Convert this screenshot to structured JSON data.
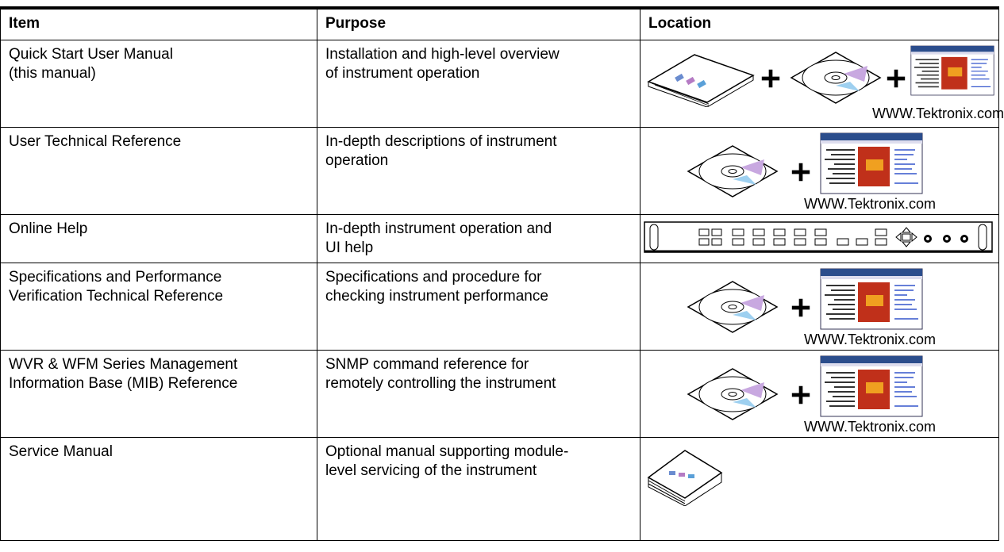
{
  "table": {
    "header": [
      "Item",
      "Purpose",
      "Location"
    ],
    "rows": [
      {
        "item": [
          "Quick Start User Manual",
          "(this manual)"
        ],
        "purpose": [
          "Installation and high-level overview",
          "of instrument operation"
        ],
        "caption": "WWW.Tektronix.com"
      },
      {
        "item": [
          "User Technical Reference"
        ],
        "purpose": [
          "In-depth descriptions of instrument",
          "operation"
        ],
        "caption": "WWW.Tektronix.com"
      },
      {
        "item": [
          "Online Help"
        ],
        "purpose": [
          "In-depth instrument operation and",
          "UI help"
        ]
      },
      {
        "item": [
          "Specifications and Performance",
          "Verification Technical Reference"
        ],
        "purpose": [
          "Specifications and procedure for",
          "checking instrument performance"
        ],
        "caption": "WWW.Tektronix.com"
      },
      {
        "item": [
          "WVR & WFM Series Management",
          "Information Base (MIB) Reference"
        ],
        "purpose": [
          "SNMP command reference for",
          "remotely controlling the instrument"
        ],
        "caption": "WWW.Tektronix.com"
      },
      {
        "item": [
          "Service Manual"
        ],
        "purpose": [
          "Optional manual supporting module-",
          "level servicing of the instrument"
        ]
      }
    ]
  }
}
